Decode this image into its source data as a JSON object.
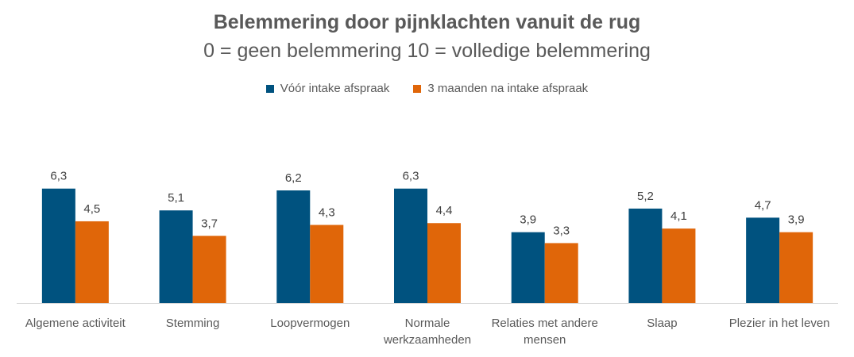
{
  "chart_data": {
    "type": "bar",
    "title": "Belemmering door pijnklachten vanuit de rug",
    "subtitle": "0 = geen belemmering  10 = volledige belemmering",
    "categories": [
      "Algemene activiteit",
      "Stemming",
      "Loopvermogen",
      "Normale\nwerkzaamheden",
      "Relaties met andere\nmensen",
      "Slaap",
      "Plezier in het leven"
    ],
    "series": [
      {
        "name": "Vóór intake afspraak",
        "color": "#00527F",
        "values": [
          6.3,
          5.1,
          6.2,
          6.3,
          3.9,
          5.2,
          4.7
        ],
        "labels": [
          "6,3",
          "5,1",
          "6,2",
          "6,3",
          "3,9",
          "5,2",
          "4,7"
        ]
      },
      {
        "name": "3 maanden na intake afspraak",
        "color": "#E06609",
        "values": [
          4.5,
          3.7,
          4.3,
          4.4,
          3.3,
          4.1,
          3.9
        ],
        "labels": [
          "4,5",
          "3,7",
          "4,3",
          "4,4",
          "3,3",
          "4,1",
          "3,9"
        ]
      }
    ],
    "ylim": [
      0,
      7
    ],
    "grid": false,
    "legend_position": "top"
  }
}
